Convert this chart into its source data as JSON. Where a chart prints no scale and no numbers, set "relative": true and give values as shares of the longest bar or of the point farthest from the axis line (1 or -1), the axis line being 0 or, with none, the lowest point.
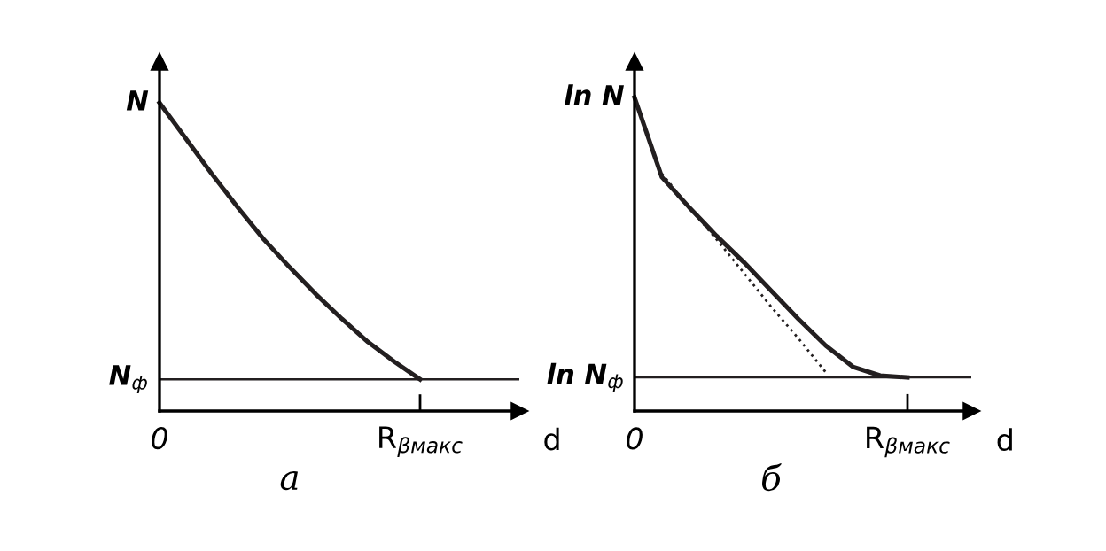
{
  "chart_data": [
    {
      "type": "line",
      "relative": true,
      "xlabel": "d",
      "ylabel": "N",
      "categories": [
        null,
        null,
        null,
        null,
        null,
        null,
        null,
        null,
        null,
        null,
        null
      ],
      "series": [
        {
          "color": "#231f20",
          "values": [
            1,
            0.885,
            0.77,
            0.661,
            0.557,
            0.466,
            0.379,
            0.299,
            0.224,
            0.161,
            0.103
          ],
          "line_style": "solid"
        }
      ],
      "ref_lines": [
        {
          "axis": "y",
          "value": 0.103,
          "label": "N$_{ф}$",
          "color": "#231f20"
        }
      ],
      "annotations": [
        "0",
        "R$_{βмакс}$",
        "а"
      ]
    },
    {
      "type": "line",
      "relative": true,
      "xlabel": "d",
      "ylabel": "ln N",
      "categories": [
        null,
        null,
        null,
        null,
        null,
        null,
        null,
        null,
        null,
        null,
        null
      ],
      "series": [
        {
          "color": "#231f20",
          "values": [
            1,
            0.746,
            0.65,
            0.559,
            0.475,
            0.384,
            0.294,
            0.209,
            0.141,
            0.113,
            0.107
          ],
          "line_style": "solid"
        },
        {
          "color": "#231f20",
          "values": [
            null,
            0.757,
            0.65,
            0.548,
            0.441,
            0.333,
            0.232,
            0.124,
            null,
            null,
            null
          ],
          "line_style": "dotted"
        }
      ],
      "ref_lines": [
        {
          "axis": "y",
          "value": 0.107,
          "label": "ln N$_{ф}$",
          "color": "#231f20"
        }
      ],
      "annotations": [
        "0",
        "R$_{βмакс}$",
        "б"
      ]
    }
  ]
}
